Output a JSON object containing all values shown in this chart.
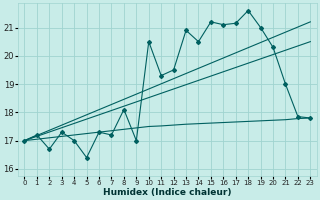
{
  "xlabel": "Humidex (Indice chaleur)",
  "background_color": "#c8ece8",
  "grid_color": "#a0d4d0",
  "line_color": "#006060",
  "xlim": [
    -0.5,
    23.5
  ],
  "ylim": [
    15.75,
    21.85
  ],
  "yticks": [
    16,
    17,
    18,
    19,
    20,
    21
  ],
  "xticks": [
    0,
    1,
    2,
    3,
    4,
    5,
    6,
    7,
    8,
    9,
    10,
    11,
    12,
    13,
    14,
    15,
    16,
    17,
    18,
    19,
    20,
    21,
    22,
    23
  ],
  "main_x": [
    0,
    1,
    2,
    3,
    4,
    5,
    6,
    7,
    8,
    9,
    10,
    11,
    12,
    13,
    14,
    15,
    16,
    17,
    18,
    19,
    20,
    21,
    22,
    23
  ],
  "main_y": [
    17.0,
    17.2,
    16.7,
    17.3,
    17.0,
    16.4,
    17.3,
    17.2,
    18.1,
    17.0,
    20.5,
    19.3,
    19.5,
    20.9,
    20.5,
    21.2,
    21.1,
    21.15,
    21.6,
    21.0,
    20.3,
    19.0,
    17.85,
    17.8
  ],
  "trend1_x": [
    0,
    23
  ],
  "trend1_y": [
    17.0,
    21.2
  ],
  "trend2_x": [
    0,
    23
  ],
  "trend2_y": [
    17.0,
    20.5
  ],
  "flat_x": [
    0,
    1,
    2,
    3,
    4,
    5,
    6,
    7,
    8,
    9,
    10,
    11,
    12,
    13,
    14,
    15,
    16,
    17,
    18,
    19,
    20,
    21,
    22,
    23
  ],
  "flat_y": [
    17.0,
    17.05,
    17.1,
    17.15,
    17.2,
    17.25,
    17.3,
    17.35,
    17.4,
    17.45,
    17.5,
    17.52,
    17.55,
    17.58,
    17.6,
    17.62,
    17.64,
    17.66,
    17.68,
    17.7,
    17.72,
    17.74,
    17.78,
    17.8
  ]
}
